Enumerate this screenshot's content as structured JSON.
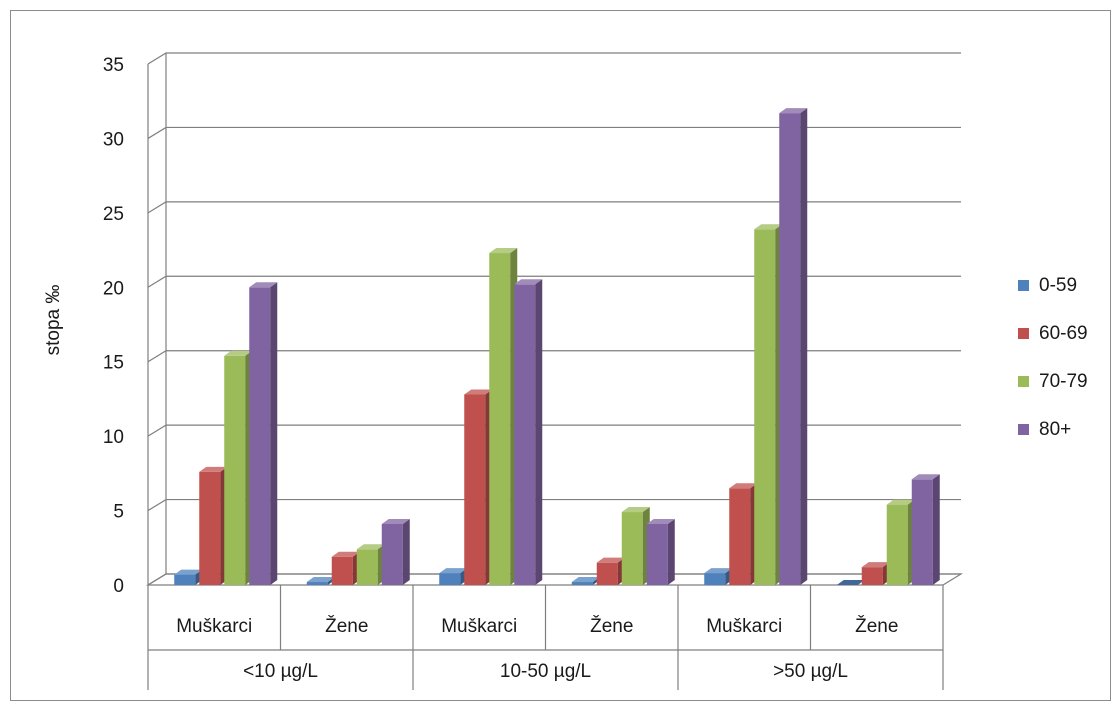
{
  "chart_data": {
    "type": "bar",
    "title": "",
    "xlabel": "",
    "ylabel": "stopa ‰",
    "ylim": [
      0,
      35
    ],
    "yticks": [
      0,
      5,
      10,
      15,
      20,
      25,
      30,
      35
    ],
    "grid": true,
    "legend_position": "right",
    "groups": [
      {
        "label": "<10 µg/L",
        "categories": [
          "Muškarci",
          "Žene"
        ]
      },
      {
        "label": "10-50 µg/L",
        "categories": [
          "Muškarci",
          "Žene"
        ]
      },
      {
        "label": ">50 µg/L",
        "categories": [
          "Muškarci",
          "Žene"
        ]
      }
    ],
    "categories": [
      "Muškarci",
      "Žene",
      "Muškarci",
      "Žene",
      "Muškarci",
      "Žene"
    ],
    "series": [
      {
        "name": "0-59",
        "color": "#4f81bd",
        "values": [
          0.7,
          0.2,
          0.8,
          0.2,
          0.8,
          0.0
        ]
      },
      {
        "name": "60-69",
        "color": "#c0504d",
        "values": [
          7.6,
          1.9,
          12.8,
          1.5,
          6.5,
          1.2
        ]
      },
      {
        "name": "70-79",
        "color": "#9bbb59",
        "values": [
          15.4,
          2.4,
          22.3,
          4.9,
          23.9,
          5.4
        ]
      },
      {
        "name": "80+",
        "color": "#8064a2",
        "values": [
          20.0,
          4.1,
          20.2,
          4.1,
          31.7,
          7.1
        ]
      }
    ]
  }
}
